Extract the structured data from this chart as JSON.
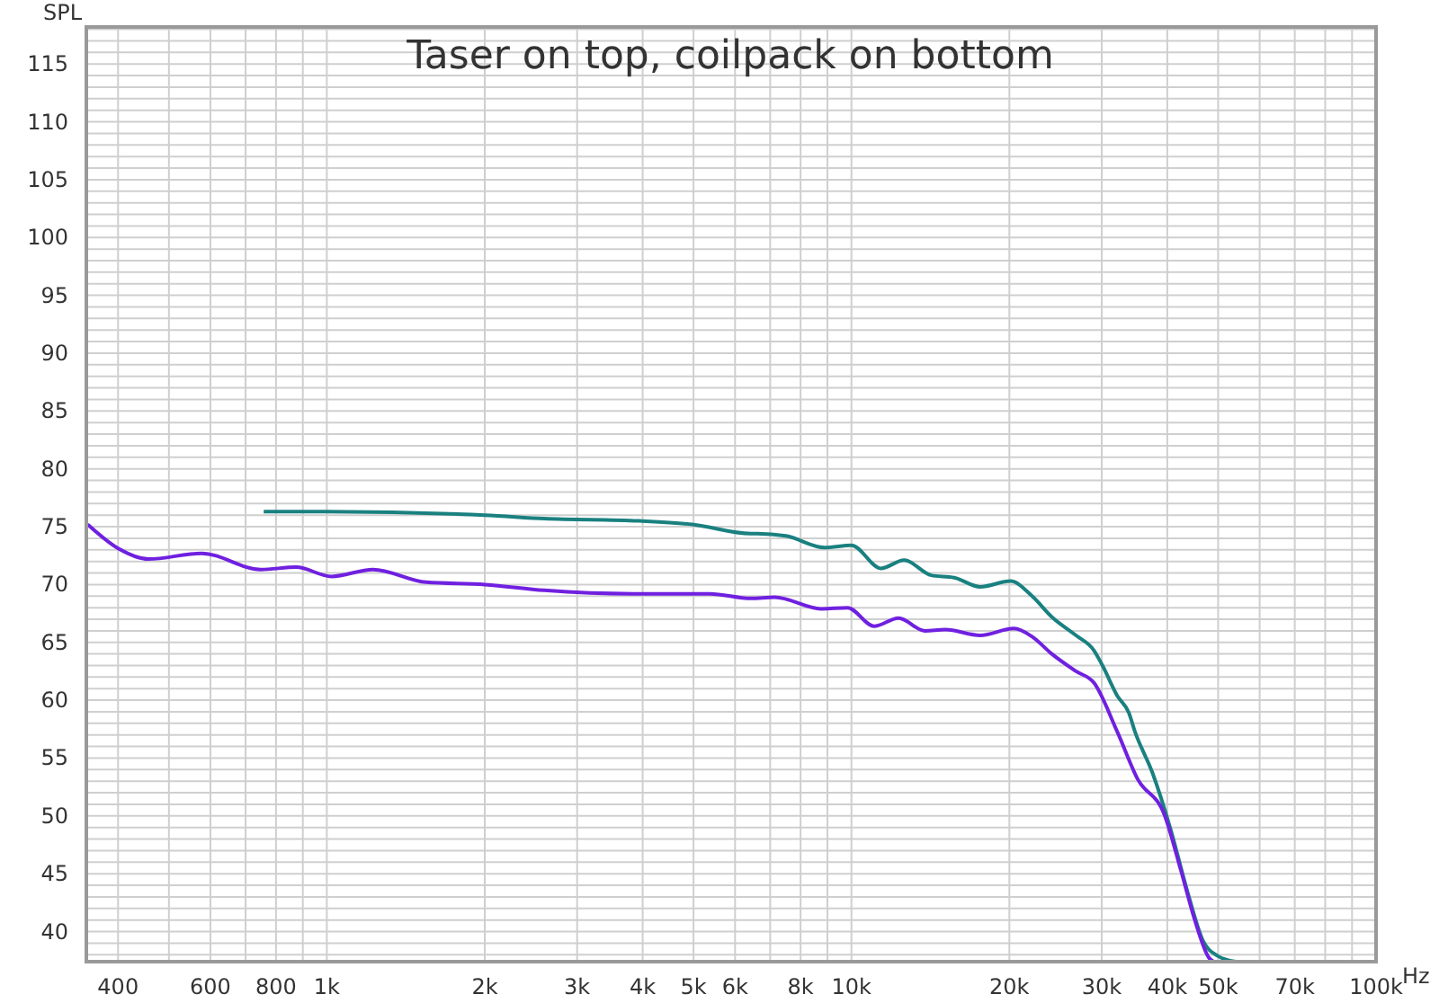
{
  "chart_data": {
    "type": "line",
    "title": "Taser on top, coilpack on bottom",
    "ylabel": "SPL",
    "xlabel": "Hz",
    "log": "x",
    "grid": true,
    "marker": "none",
    "line_style": "solid",
    "xlim": [
      348,
      100000
    ],
    "ylim": [
      37.4,
      118.2
    ],
    "xticks": [
      {
        "value": 400,
        "label": "400"
      },
      {
        "value": 500,
        "label": null
      },
      {
        "value": 600,
        "label": "600"
      },
      {
        "value": 700,
        "label": null
      },
      {
        "value": 800,
        "label": "800"
      },
      {
        "value": 900,
        "label": null
      },
      {
        "value": 1000,
        "label": "1k"
      },
      {
        "value": 2000,
        "label": "2k"
      },
      {
        "value": 3000,
        "label": "3k"
      },
      {
        "value": 4000,
        "label": "4k"
      },
      {
        "value": 5000,
        "label": "5k"
      },
      {
        "value": 6000,
        "label": "6k"
      },
      {
        "value": 7000,
        "label": null
      },
      {
        "value": 8000,
        "label": "8k"
      },
      {
        "value": 9000,
        "label": null
      },
      {
        "value": 10000,
        "label": "10k"
      },
      {
        "value": 20000,
        "label": "20k"
      },
      {
        "value": 30000,
        "label": "30k"
      },
      {
        "value": 40000,
        "label": "40k"
      },
      {
        "value": 50000,
        "label": "50k"
      },
      {
        "value": 60000,
        "label": null
      },
      {
        "value": 70000,
        "label": "70k"
      },
      {
        "value": 80000,
        "label": null
      },
      {
        "value": 90000,
        "label": null
      },
      {
        "value": 100000,
        "label": "100k"
      }
    ],
    "yticks": [
      {
        "value": 38,
        "label": null
      },
      {
        "value": 39,
        "label": null
      },
      40,
      {
        "value": 41,
        "label": null
      },
      {
        "value": 42,
        "label": null
      },
      {
        "value": 43,
        "label": null
      },
      {
        "value": 44,
        "label": null
      },
      45,
      {
        "value": 46,
        "label": null
      },
      {
        "value": 47,
        "label": null
      },
      {
        "value": 48,
        "label": null
      },
      {
        "value": 49,
        "label": null
      },
      50,
      {
        "value": 51,
        "label": null
      },
      {
        "value": 52,
        "label": null
      },
      {
        "value": 53,
        "label": null
      },
      {
        "value": 54,
        "label": null
      },
      55,
      {
        "value": 56,
        "label": null
      },
      {
        "value": 57,
        "label": null
      },
      {
        "value": 58,
        "label": null
      },
      {
        "value": 59,
        "label": null
      },
      60,
      {
        "value": 61,
        "label": null
      },
      {
        "value": 62,
        "label": null
      },
      {
        "value": 63,
        "label": null
      },
      {
        "value": 64,
        "label": null
      },
      65,
      {
        "value": 66,
        "label": null
      },
      {
        "value": 67,
        "label": null
      },
      {
        "value": 68,
        "label": null
      },
      {
        "value": 69,
        "label": null
      },
      70,
      {
        "value": 71,
        "label": null
      },
      {
        "value": 72,
        "label": null
      },
      {
        "value": 73,
        "label": null
      },
      {
        "value": 74,
        "label": null
      },
      75,
      {
        "value": 76,
        "label": null
      },
      {
        "value": 77,
        "label": null
      },
      {
        "value": 78,
        "label": null
      },
      {
        "value": 79,
        "label": null
      },
      80,
      {
        "value": 81,
        "label": null
      },
      {
        "value": 82,
        "label": null
      },
      {
        "value": 83,
        "label": null
      },
      {
        "value": 84,
        "label": null
      },
      85,
      {
        "value": 86,
        "label": null
      },
      {
        "value": 87,
        "label": null
      },
      {
        "value": 88,
        "label": null
      },
      {
        "value": 89,
        "label": null
      },
      90,
      {
        "value": 91,
        "label": null
      },
      {
        "value": 92,
        "label": null
      },
      {
        "value": 93,
        "label": null
      },
      {
        "value": 94,
        "label": null
      },
      95,
      {
        "value": 96,
        "label": null
      },
      {
        "value": 97,
        "label": null
      },
      {
        "value": 98,
        "label": null
      },
      {
        "value": 99,
        "label": null
      },
      100,
      {
        "value": 101,
        "label": null
      },
      {
        "value": 102,
        "label": null
      },
      {
        "value": 103,
        "label": null
      },
      {
        "value": 104,
        "label": null
      },
      105,
      {
        "value": 106,
        "label": null
      },
      {
        "value": 107,
        "label": null
      },
      {
        "value": 108,
        "label": null
      },
      {
        "value": 109,
        "label": null
      },
      110,
      {
        "value": 111,
        "label": null
      },
      {
        "value": 112,
        "label": null
      },
      {
        "value": 113,
        "label": null
      },
      {
        "value": 114,
        "label": null
      },
      115,
      {
        "value": 116,
        "label": null
      },
      {
        "value": 117,
        "label": null
      },
      {
        "value": 118,
        "label": null
      }
    ],
    "series": [
      {
        "color": "#1a8080",
        "x": [
          758,
          995,
          2003,
          2597,
          3932,
          4970,
          6430,
          6610,
          7500,
          8890,
          10000,
          11380,
          12600,
          14200,
          15700,
          17600,
          20100,
          22100,
          24100,
          26800,
          29000,
          30100,
          32100,
          33800,
          34700,
          37500,
          40500,
          43800,
          46800,
          49900,
          54000
        ],
        "values": [
          76.3,
          76.3,
          76.0,
          75.7,
          75.5,
          75.2,
          74.4,
          74.4,
          74.2,
          73.2,
          73.4,
          71.4,
          72.1,
          70.8,
          70.6,
          69.8,
          70.3,
          69.0,
          67.2,
          65.6,
          64.3,
          63.0,
          60.4,
          58.9,
          57.3,
          53.7,
          49.0,
          43.3,
          39.2,
          37.9,
          37.4
        ]
      },
      {
        "color": "#7020e0",
        "x": [
          350,
          401,
          457,
          577,
          748,
          874,
          1021,
          1224,
          1546,
          2003,
          2597,
          3833,
          5370,
          6430,
          7140,
          8760,
          9830,
          11040,
          12300,
          13800,
          15100,
          17600,
          20400,
          22100,
          24100,
          26800,
          29000,
          32100,
          35100,
          39500,
          42400,
          45000,
          48100,
          49000
        ],
        "values": [
          75.2,
          73.1,
          72.2,
          72.7,
          71.3,
          71.5,
          70.7,
          71.3,
          70.2,
          70.0,
          69.5,
          69.2,
          69.2,
          68.8,
          68.9,
          67.9,
          68.0,
          66.4,
          67.1,
          66.0,
          66.1,
          65.6,
          66.2,
          65.5,
          64.0,
          62.5,
          61.5,
          57.3,
          53.2,
          50.1,
          45.4,
          41.2,
          37.7,
          37.4
        ]
      }
    ]
  }
}
